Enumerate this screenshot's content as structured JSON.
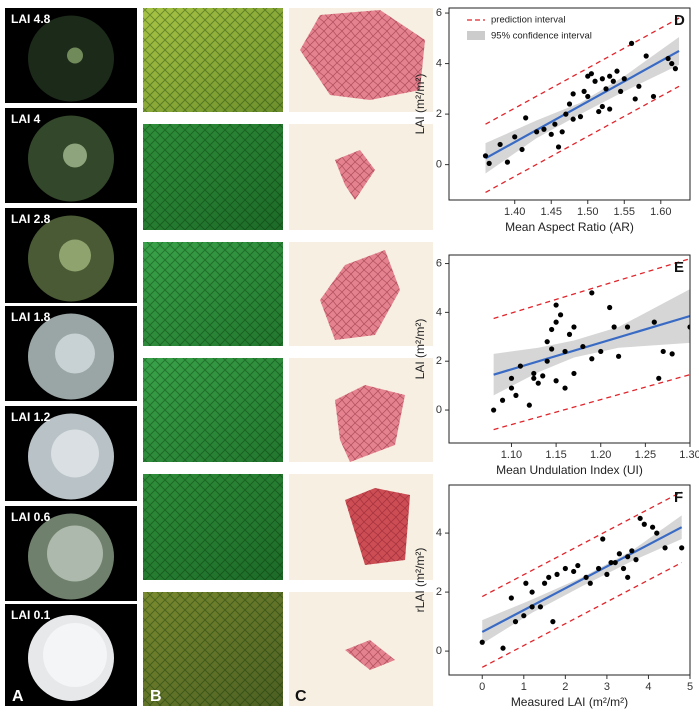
{
  "photos": {
    "A": {
      "label": "A",
      "items": [
        {
          "label": "LAI 4.8"
        },
        {
          "label": "LAI 4"
        },
        {
          "label": "LAI 2.8"
        },
        {
          "label": "LAI 1.8"
        },
        {
          "label": "LAI 1.2"
        },
        {
          "label": "LAI 0.6"
        },
        {
          "label": "LAI 0.1"
        }
      ]
    },
    "B": {
      "label": "B"
    },
    "C": {
      "label": "C"
    }
  },
  "chart_data": [
    {
      "type": "scatter",
      "panel_label": "D",
      "x_label": "Mean Aspect Ratio (AR)",
      "y_label": "LAI (m²/m²)",
      "xlim": [
        1.31,
        1.64
      ],
      "ylim": [
        -1.4,
        6.2
      ],
      "xticks": [
        {
          "value": 1.4,
          "label": "1.40"
        },
        {
          "value": 1.45,
          "label": "1.45"
        },
        {
          "value": 1.5,
          "label": "1.50"
        },
        {
          "value": 1.55,
          "label": "1.55"
        },
        {
          "value": 1.6,
          "label": "1.60"
        }
      ],
      "yticks": [
        0,
        2,
        4,
        6
      ],
      "x": [
        1.36,
        1.365,
        1.38,
        1.39,
        1.4,
        1.41,
        1.415,
        1.43,
        1.44,
        1.45,
        1.455,
        1.46,
        1.465,
        1.47,
        1.475,
        1.48,
        1.48,
        1.49,
        1.495,
        1.5,
        1.5,
        1.505,
        1.51,
        1.515,
        1.52,
        1.52,
        1.525,
        1.53,
        1.53,
        1.535,
        1.54,
        1.545,
        1.55,
        1.56,
        1.565,
        1.57,
        1.58,
        1.59,
        1.61,
        1.615,
        1.62
      ],
      "y": [
        0.35,
        0.05,
        0.8,
        0.1,
        1.1,
        0.6,
        1.85,
        1.3,
        1.4,
        1.2,
        1.6,
        0.7,
        1.3,
        2.0,
        2.4,
        1.8,
        2.8,
        1.9,
        2.9,
        3.5,
        2.7,
        3.6,
        3.3,
        2.1,
        3.4,
        2.3,
        3.0,
        3.5,
        2.2,
        3.3,
        3.7,
        2.9,
        3.4,
        4.8,
        2.6,
        3.1,
        4.3,
        2.7,
        4.2,
        4.0,
        3.8
      ],
      "point_color": "#000000",
      "fit": {
        "color": "#3a6bc4",
        "x": [
          1.36,
          1.625
        ],
        "y": [
          0.25,
          4.5
        ]
      },
      "confidence_interval": {
        "name": "95% confidence interval",
        "color": "#cccccc",
        "x": [
          1.36,
          1.43,
          1.49,
          1.55,
          1.625
        ],
        "lower": [
          -0.35,
          1.05,
          2.0,
          2.9,
          3.95
        ],
        "upper": [
          0.85,
          1.75,
          2.45,
          3.5,
          5.05
        ]
      },
      "prediction_interval": {
        "name": "prediction interval",
        "color": "#e0252b",
        "x": [
          1.36,
          1.625
        ],
        "lower": [
          -1.1,
          3.1
        ],
        "upper": [
          1.6,
          5.8
        ]
      }
    },
    {
      "type": "scatter",
      "panel_label": "E",
      "x_label": "Mean Undulation Index (UI)",
      "y_label": "LAI (m²/m²)",
      "xlim": [
        1.03,
        1.3
      ],
      "ylim": [
        -1.35,
        6.35
      ],
      "xticks": [
        {
          "value": 1.1,
          "label": "1.10"
        },
        {
          "value": 1.15,
          "label": "1.15"
        },
        {
          "value": 1.2,
          "label": "1.20"
        },
        {
          "value": 1.25,
          "label": "1.25"
        },
        {
          "value": 1.3,
          "label": "1.30"
        }
      ],
      "yticks": [
        0,
        2,
        4,
        6
      ],
      "x": [
        1.08,
        1.09,
        1.1,
        1.1,
        1.105,
        1.11,
        1.12,
        1.125,
        1.13,
        1.135,
        1.14,
        1.14,
        1.145,
        1.15,
        1.15,
        1.155,
        1.15,
        1.16,
        1.16,
        1.165,
        1.17,
        1.17,
        1.18,
        1.19,
        1.19,
        1.2,
        1.21,
        1.215,
        1.22,
        1.23,
        1.26,
        1.265,
        1.27,
        1.28,
        1.3,
        1.145,
        1.125
      ],
      "y": [
        0.0,
        0.4,
        0.9,
        1.3,
        0.6,
        1.8,
        0.2,
        1.5,
        1.1,
        1.4,
        2.0,
        2.8,
        3.3,
        3.6,
        4.3,
        3.9,
        1.2,
        0.9,
        2.4,
        3.1,
        3.4,
        1.5,
        2.6,
        4.8,
        2.1,
        2.4,
        4.2,
        3.4,
        2.2,
        3.4,
        3.6,
        1.3,
        2.4,
        2.3,
        3.4,
        2.5,
        1.3
      ],
      "point_color": "#000000",
      "fit": {
        "color": "#3a6bc4",
        "x": [
          1.08,
          1.3
        ],
        "y": [
          1.45,
          3.85
        ]
      },
      "confidence_interval": {
        "color": "#cccccc",
        "x": [
          1.08,
          1.13,
          1.17,
          1.22,
          1.3
        ],
        "lower": [
          0.6,
          1.55,
          2.15,
          2.55,
          2.75
        ],
        "upper": [
          2.3,
          2.55,
          2.85,
          3.4,
          4.95
        ]
      },
      "prediction_interval": {
        "color": "#e0252b",
        "x": [
          1.08,
          1.3
        ],
        "lower": [
          -0.8,
          1.45
        ],
        "upper": [
          3.75,
          6.2
        ]
      }
    },
    {
      "type": "scatter",
      "panel_label": "F",
      "x_label": "Measured LAI (m²/m²)",
      "y_label": "rLAI (m²/m²)",
      "xlim": [
        -0.8,
        5.0
      ],
      "ylim": [
        -0.81,
        5.63
      ],
      "xticks": [
        0,
        1,
        2,
        3,
        4,
        5
      ],
      "yticks": [
        0,
        2,
        4
      ],
      "x": [
        0,
        0.5,
        0.7,
        0.8,
        1.0,
        1.05,
        1.2,
        1.2,
        1.4,
        1.5,
        1.6,
        1.7,
        1.8,
        2.0,
        2.2,
        2.3,
        2.5,
        2.8,
        2.9,
        3.0,
        3.1,
        3.2,
        3.3,
        3.4,
        3.5,
        3.5,
        3.7,
        3.8,
        3.9,
        4.1,
        4.2,
        4.4,
        4.8,
        3.6,
        2.6
      ],
      "y": [
        0.3,
        0.1,
        1.8,
        1.0,
        1.2,
        2.3,
        2.0,
        1.5,
        1.5,
        2.3,
        2.5,
        1.0,
        2.6,
        2.8,
        2.7,
        2.9,
        2.5,
        2.8,
        3.8,
        2.6,
        3.0,
        3.0,
        3.3,
        2.8,
        3.2,
        2.5,
        3.1,
        4.5,
        4.3,
        4.2,
        4.0,
        3.5,
        3.5,
        3.4,
        2.3
      ],
      "point_color": "#000000",
      "fit": {
        "color": "#3a6bc4",
        "x": [
          0,
          4.8
        ],
        "y": [
          0.65,
          4.2
        ]
      },
      "confidence_interval": {
        "color": "#cccccc",
        "x": [
          0,
          1.2,
          2.4,
          3.6,
          4.8
        ],
        "lower": [
          0.25,
          1.3,
          2.2,
          3.05,
          3.8
        ],
        "upper": [
          1.05,
          1.75,
          2.5,
          3.4,
          4.6
        ]
      },
      "prediction_interval": {
        "color": "#e0252b",
        "x": [
          0,
          4.8
        ],
        "lower": [
          -0.55,
          3.0
        ],
        "upper": [
          1.85,
          5.4
        ]
      }
    }
  ]
}
